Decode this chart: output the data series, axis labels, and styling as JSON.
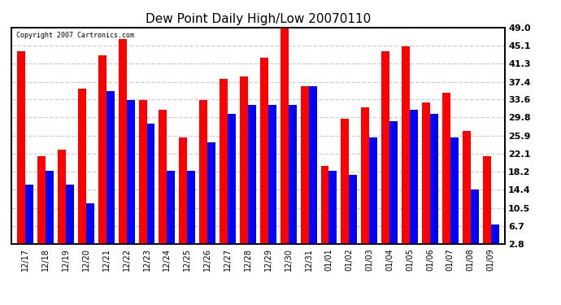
{
  "title": "Dew Point Daily High/Low 20070110",
  "copyright": "Copyright 2007 Cartronics.com",
  "categories": [
    "12/17",
    "12/18",
    "12/19",
    "12/20",
    "12/21",
    "12/22",
    "12/23",
    "12/24",
    "12/25",
    "12/26",
    "12/27",
    "12/28",
    "12/29",
    "12/30",
    "12/31",
    "01/01",
    "01/02",
    "01/03",
    "01/04",
    "01/05",
    "01/06",
    "01/07",
    "01/08",
    "01/09"
  ],
  "highs": [
    44.0,
    21.5,
    23.0,
    36.0,
    43.0,
    46.5,
    33.5,
    31.5,
    25.5,
    33.5,
    38.0,
    38.5,
    42.5,
    50.0,
    36.5,
    19.5,
    29.5,
    32.0,
    44.0,
    45.0,
    33.0,
    35.0,
    27.0,
    21.5
  ],
  "lows": [
    15.5,
    18.5,
    15.5,
    11.5,
    35.5,
    33.5,
    28.5,
    18.5,
    18.5,
    24.5,
    30.5,
    32.5,
    32.5,
    32.5,
    36.5,
    18.5,
    17.5,
    25.5,
    29.0,
    31.5,
    30.5,
    25.5,
    14.5,
    7.0
  ],
  "high_color": "#ff0000",
  "low_color": "#0000ff",
  "bg_color": "#ffffff",
  "plot_bg_color": "#ffffff",
  "yticks": [
    2.8,
    6.7,
    10.5,
    14.4,
    18.2,
    22.1,
    25.9,
    29.8,
    33.6,
    37.4,
    41.3,
    45.1,
    49.0
  ],
  "ymin": 2.8,
  "ymax": 49.0,
  "bar_width": 0.4
}
